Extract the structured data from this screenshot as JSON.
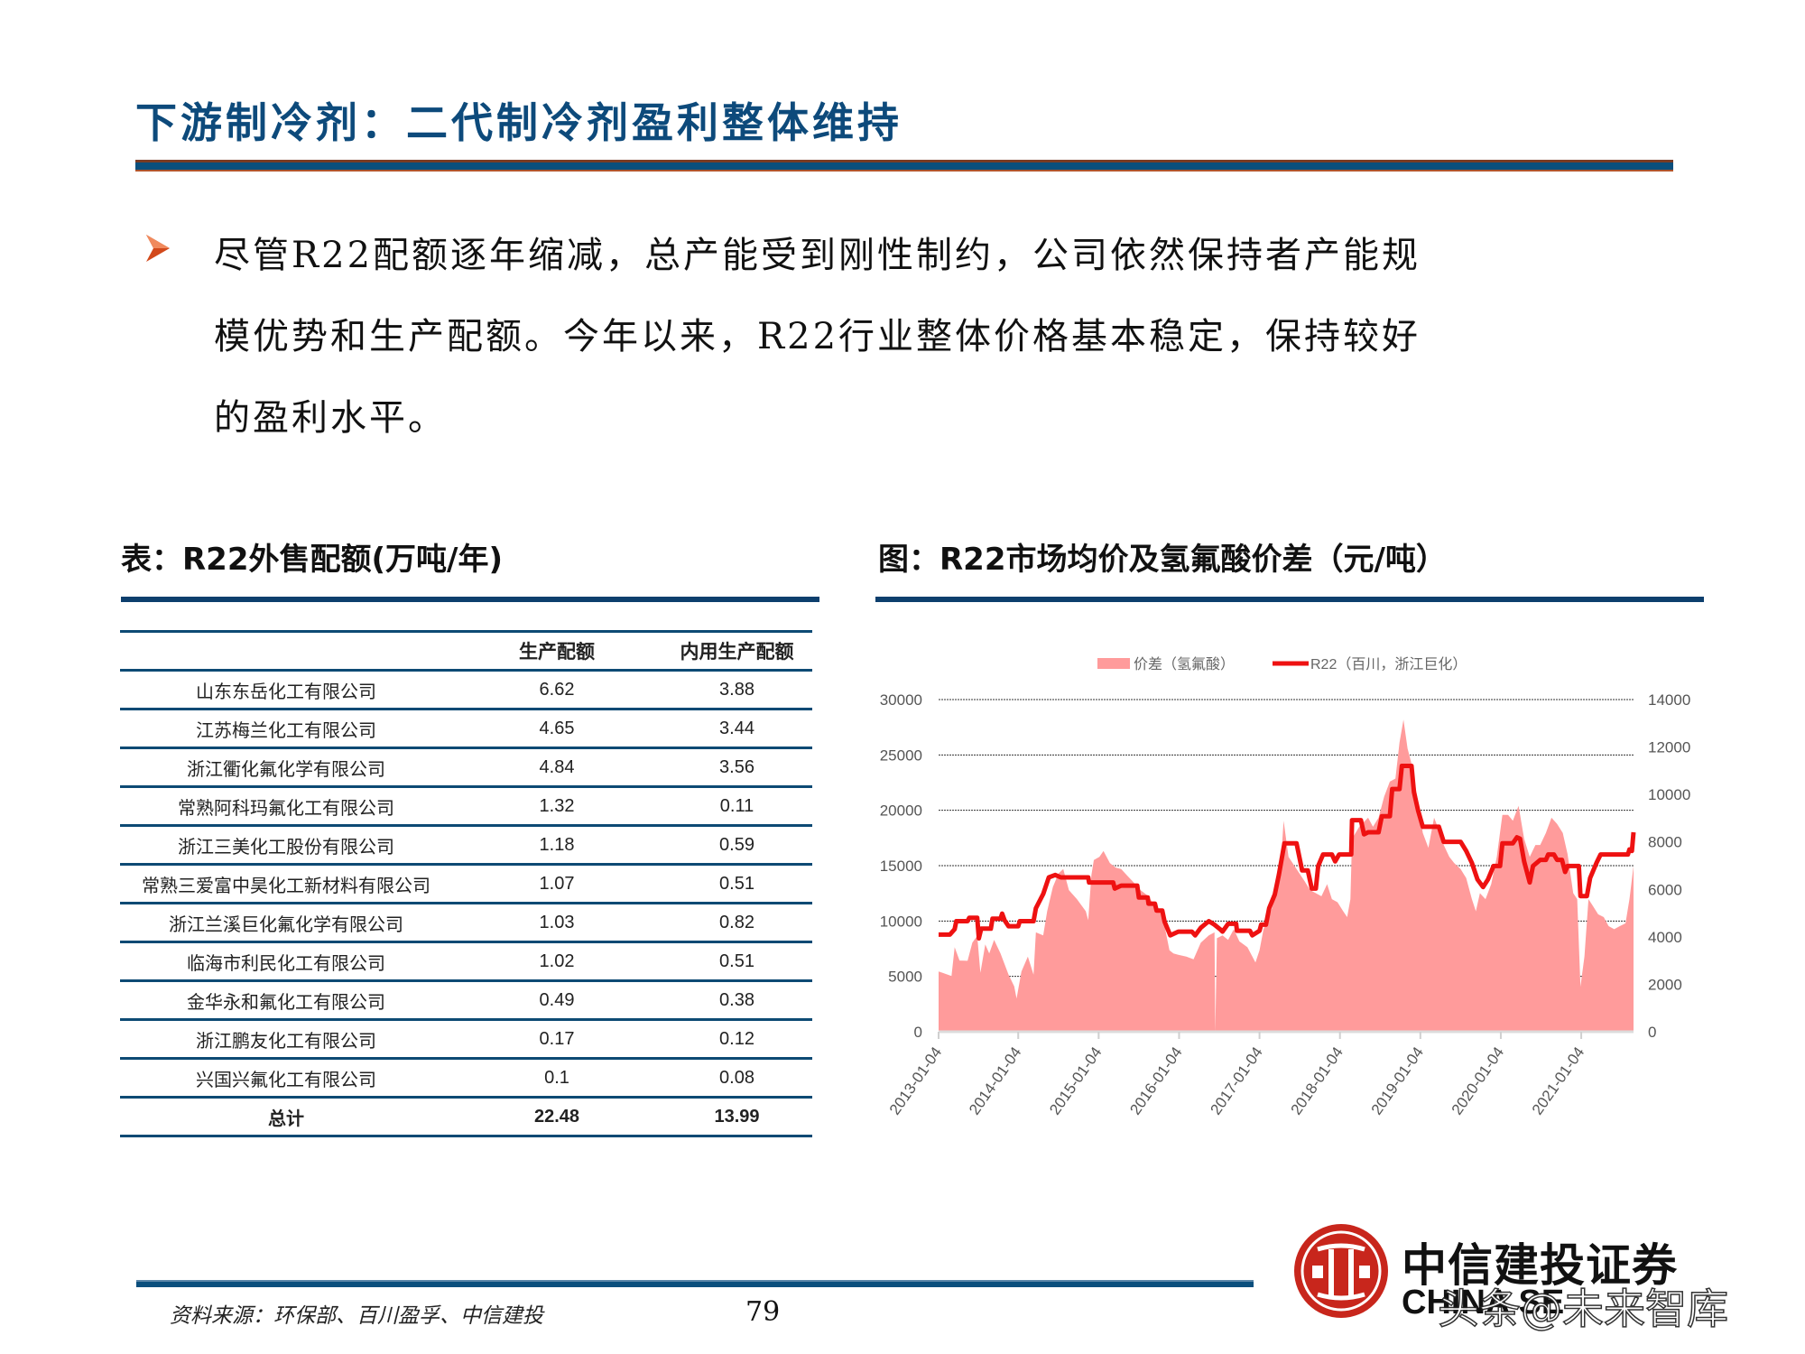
{
  "slide": {
    "title": "下游制冷剂：二代制冷剂盈利整体维持",
    "paragraph_lines": [
      "尽管R22配额逐年缩减，总产能受到刚性制约，公司依然保持者产能规",
      "模优势和生产配额。今年以来，R22行业整体价格基本稳定，保持较好",
      "的盈利水平。"
    ],
    "bullet_icon": "arrow-bullet-icon",
    "accent_colors": {
      "title_blue": "#0d4a7b",
      "rule_brown": "#7a3c25",
      "bullet_orange": "#d2491b",
      "logo_red": "#c8261c"
    }
  },
  "table": {
    "heading": "表：R22外售配额(万吨/年)",
    "columns": [
      "",
      "生产配额",
      "内用生产配额"
    ],
    "rows": [
      {
        "company": "山东东岳化工有限公司",
        "production_quota": "6.62",
        "internal_quota": "3.88"
      },
      {
        "company": "江苏梅兰化工有限公司",
        "production_quota": "4.65",
        "internal_quota": "3.44"
      },
      {
        "company": "浙江衢化氟化学有限公司",
        "production_quota": "4.84",
        "internal_quota": "3.56"
      },
      {
        "company": "常熟阿科玛氟化工有限公司",
        "production_quota": "1.32",
        "internal_quota": "0.11"
      },
      {
        "company": "浙江三美化工股份有限公司",
        "production_quota": "1.18",
        "internal_quota": "0.59"
      },
      {
        "company": "常熟三爱富中昊化工新材料有限公司",
        "production_quota": "1.07",
        "internal_quota": "0.51"
      },
      {
        "company": "浙江兰溪巨化氟化学有限公司",
        "production_quota": "1.03",
        "internal_quota": "0.82"
      },
      {
        "company": "临海市利民化工有限公司",
        "production_quota": "1.02",
        "internal_quota": "0.51"
      },
      {
        "company": "金华永和氟化工有限公司",
        "production_quota": "0.49",
        "internal_quota": "0.38"
      },
      {
        "company": "浙江鹏友化工有限公司",
        "production_quota": "0.17",
        "internal_quota": "0.12"
      },
      {
        "company": "兴国兴氟化工有限公司",
        "production_quota": "0.1",
        "internal_quota": "0.08"
      }
    ],
    "total": {
      "company": "总计",
      "production_quota": "22.48",
      "internal_quota": "13.99"
    }
  },
  "chart_heading": "图：R22市场均价及氢氟酸价差（元/吨）",
  "chart_data": {
    "type": "area+line",
    "title": "R22市场均价及氢氟酸价差（元/吨）",
    "x_unit": "years since 2013-01-04",
    "x_ticks": [
      "2013-01-04",
      "2014-01-04",
      "2015-01-04",
      "2016-01-04",
      "2017-01-04",
      "2018-01-04",
      "2019-01-04",
      "2020-01-04",
      "2021-01-04"
    ],
    "x_tick_positions": [
      0,
      0.99,
      1.99,
      2.99,
      3.99,
      4.99,
      5.99,
      6.99,
      7.99
    ],
    "x_range": [
      0,
      8.64
    ],
    "y_left": {
      "ticks": [
        "0",
        "5000",
        "10000",
        "15000",
        "20000",
        "25000",
        "30000"
      ],
      "range": [
        0,
        30000
      ]
    },
    "y_right": {
      "ticks": [
        "0",
        "2000",
        "4000",
        "6000",
        "8000",
        "10000",
        "12000",
        "14000"
      ],
      "range": [
        0,
        14000
      ]
    },
    "grid": "horizontal dotted",
    "legend_position": "top",
    "series": [
      {
        "name": "价差（氢氟酸）",
        "kind": "area",
        "axis": "right",
        "color": "#ff9b9b",
        "points": [
          [
            0,
            2540
          ],
          [
            0.05,
            2480
          ],
          [
            0.16,
            2350
          ],
          [
            0.2,
            3560
          ],
          [
            0.26,
            3000
          ],
          [
            0.36,
            2990
          ],
          [
            0.42,
            3760
          ],
          [
            0.48,
            4040
          ],
          [
            0.52,
            2480
          ],
          [
            0.58,
            3680
          ],
          [
            0.63,
            3300
          ],
          [
            0.69,
            3870
          ],
          [
            0.77,
            3300
          ],
          [
            0.87,
            2410
          ],
          [
            0.94,
            1910
          ],
          [
            0.97,
            1400
          ],
          [
            1.03,
            2540
          ],
          [
            1.11,
            3170
          ],
          [
            1.18,
            2410
          ],
          [
            1.21,
            4190
          ],
          [
            1.3,
            4060
          ],
          [
            1.35,
            5080
          ],
          [
            1.42,
            6100
          ],
          [
            1.49,
            6670
          ],
          [
            1.55,
            6860
          ],
          [
            1.62,
            5970
          ],
          [
            1.72,
            5590
          ],
          [
            1.83,
            5080
          ],
          [
            1.86,
            4700
          ],
          [
            1.9,
            6600
          ],
          [
            1.93,
            7240
          ],
          [
            2.0,
            7370
          ],
          [
            2.05,
            7620
          ],
          [
            2.13,
            7110
          ],
          [
            2.2,
            6920
          ],
          [
            2.27,
            6860
          ],
          [
            2.34,
            6600
          ],
          [
            2.41,
            6350
          ],
          [
            2.51,
            5970
          ],
          [
            2.61,
            5710
          ],
          [
            2.68,
            5330
          ],
          [
            2.75,
            5080
          ],
          [
            2.81,
            4450
          ],
          [
            2.87,
            3430
          ],
          [
            2.92,
            3300
          ],
          [
            2.98,
            3240
          ],
          [
            3.08,
            3170
          ],
          [
            3.17,
            3050
          ],
          [
            3.26,
            3750
          ],
          [
            3.36,
            4060
          ],
          [
            3.43,
            4190
          ],
          [
            3.44,
            0
          ],
          [
            3.46,
            3940
          ],
          [
            3.53,
            4060
          ],
          [
            3.6,
            3870
          ],
          [
            3.67,
            4320
          ],
          [
            3.74,
            3810
          ],
          [
            3.84,
            3560
          ],
          [
            3.94,
            2920
          ],
          [
            3.99,
            3430
          ],
          [
            4.04,
            4320
          ],
          [
            4.11,
            4830
          ],
          [
            4.18,
            5590
          ],
          [
            4.25,
            6860
          ],
          [
            4.29,
            8890
          ],
          [
            4.35,
            7370
          ],
          [
            4.45,
            6860
          ],
          [
            4.55,
            6350
          ],
          [
            4.62,
            5970
          ],
          [
            4.69,
            5840
          ],
          [
            4.76,
            5710
          ],
          [
            4.83,
            6220
          ],
          [
            4.89,
            5590
          ],
          [
            4.96,
            5460
          ],
          [
            5.03,
            5080
          ],
          [
            5.08,
            4830
          ],
          [
            5.12,
            5590
          ],
          [
            5.14,
            8130
          ],
          [
            5.23,
            8640
          ],
          [
            5.34,
            9020
          ],
          [
            5.4,
            8640
          ],
          [
            5.47,
            9020
          ],
          [
            5.54,
            9910
          ],
          [
            5.61,
            10540
          ],
          [
            5.68,
            10670
          ],
          [
            5.73,
            12190
          ],
          [
            5.78,
            13150
          ],
          [
            5.83,
            11940
          ],
          [
            5.88,
            11300
          ],
          [
            5.95,
            9910
          ],
          [
            6.02,
            8380
          ],
          [
            6.09,
            7750
          ],
          [
            6.16,
            9020
          ],
          [
            6.22,
            8510
          ],
          [
            6.28,
            7870
          ],
          [
            6.35,
            7370
          ],
          [
            6.41,
            7110
          ],
          [
            6.49,
            6860
          ],
          [
            6.56,
            6480
          ],
          [
            6.63,
            5590
          ],
          [
            6.68,
            5080
          ],
          [
            6.73,
            5840
          ],
          [
            6.8,
            5590
          ],
          [
            6.87,
            6220
          ],
          [
            6.94,
            7370
          ],
          [
            7.01,
            9140
          ],
          [
            7.08,
            9140
          ],
          [
            7.14,
            8890
          ],
          [
            7.21,
            9520
          ],
          [
            7.28,
            8130
          ],
          [
            7.35,
            7370
          ],
          [
            7.42,
            7870
          ],
          [
            7.48,
            7870
          ],
          [
            7.55,
            8380
          ],
          [
            7.62,
            9020
          ],
          [
            7.69,
            8760
          ],
          [
            7.76,
            8380
          ],
          [
            7.82,
            7490
          ],
          [
            7.89,
            5840
          ],
          [
            7.94,
            5590
          ],
          [
            7.98,
            1900
          ],
          [
            8.03,
            3170
          ],
          [
            8.08,
            5590
          ],
          [
            8.13,
            5330
          ],
          [
            8.2,
            4950
          ],
          [
            8.27,
            4830
          ],
          [
            8.33,
            4450
          ],
          [
            8.4,
            4320
          ],
          [
            8.47,
            4450
          ],
          [
            8.54,
            4570
          ],
          [
            8.59,
            5590
          ],
          [
            8.64,
            6990
          ]
        ]
      },
      {
        "name": "R22（百川，浙江巨化）",
        "kind": "line",
        "axis": "left",
        "color": "#ee1111",
        "points": [
          [
            0,
            8770
          ],
          [
            0.14,
            8770
          ],
          [
            0.2,
            9260
          ],
          [
            0.22,
            9990
          ],
          [
            0.36,
            9990
          ],
          [
            0.38,
            10290
          ],
          [
            0.48,
            10290
          ],
          [
            0.5,
            8440
          ],
          [
            0.53,
            9310
          ],
          [
            0.65,
            9310
          ],
          [
            0.67,
            10210
          ],
          [
            0.77,
            10210
          ],
          [
            0.79,
            10670
          ],
          [
            0.82,
            10070
          ],
          [
            0.87,
            9530
          ],
          [
            0.99,
            9530
          ],
          [
            1.01,
            9990
          ],
          [
            1.18,
            9990
          ],
          [
            1.21,
            11160
          ],
          [
            1.3,
            12440
          ],
          [
            1.37,
            13940
          ],
          [
            1.45,
            14160
          ],
          [
            1.52,
            13940
          ],
          [
            1.86,
            13940
          ],
          [
            1.87,
            13480
          ],
          [
            2.17,
            13480
          ],
          [
            2.19,
            12930
          ],
          [
            2.27,
            13200
          ],
          [
            2.47,
            13200
          ],
          [
            2.49,
            12120
          ],
          [
            2.6,
            12120
          ],
          [
            2.61,
            11570
          ],
          [
            2.69,
            11570
          ],
          [
            2.71,
            10950
          ],
          [
            2.78,
            10950
          ],
          [
            2.81,
            9940
          ],
          [
            2.88,
            8710
          ],
          [
            2.98,
            9040
          ],
          [
            3.15,
            9040
          ],
          [
            3.19,
            8710
          ],
          [
            3.26,
            9390
          ],
          [
            3.36,
            9990
          ],
          [
            3.43,
            9670
          ],
          [
            3.5,
            9260
          ],
          [
            3.53,
            9040
          ],
          [
            3.6,
            9750
          ],
          [
            3.7,
            9750
          ],
          [
            3.71,
            9120
          ],
          [
            3.87,
            9120
          ],
          [
            3.9,
            8710
          ],
          [
            3.99,
            9120
          ],
          [
            4.01,
            9670
          ],
          [
            4.07,
            9670
          ],
          [
            4.11,
            11160
          ],
          [
            4.18,
            12390
          ],
          [
            4.23,
            14160
          ],
          [
            4.3,
            17020
          ],
          [
            4.45,
            17020
          ],
          [
            4.52,
            14570
          ],
          [
            4.59,
            14570
          ],
          [
            4.64,
            12930
          ],
          [
            4.69,
            12930
          ],
          [
            4.72,
            14970
          ],
          [
            4.78,
            16010
          ],
          [
            4.89,
            16010
          ],
          [
            4.93,
            15380
          ],
          [
            4.98,
            16010
          ],
          [
            5.13,
            16010
          ],
          [
            5.14,
            19110
          ],
          [
            5.25,
            19110
          ],
          [
            5.29,
            17830
          ],
          [
            5.34,
            18020
          ],
          [
            5.47,
            18020
          ],
          [
            5.51,
            19470
          ],
          [
            5.61,
            19470
          ],
          [
            5.64,
            21920
          ],
          [
            5.73,
            21920
          ],
          [
            5.76,
            24010
          ],
          [
            5.88,
            24010
          ],
          [
            5.91,
            21650
          ],
          [
            5.96,
            20010
          ],
          [
            6.02,
            18510
          ],
          [
            6.22,
            18510
          ],
          [
            6.28,
            17150
          ],
          [
            6.49,
            17150
          ],
          [
            6.56,
            16330
          ],
          [
            6.63,
            15250
          ],
          [
            6.7,
            13750
          ],
          [
            6.77,
            13070
          ],
          [
            6.83,
            13750
          ],
          [
            6.9,
            14970
          ],
          [
            6.98,
            14970
          ],
          [
            7.01,
            17020
          ],
          [
            7.14,
            17020
          ],
          [
            7.19,
            17560
          ],
          [
            7.23,
            17430
          ],
          [
            7.28,
            15380
          ],
          [
            7.35,
            13480
          ],
          [
            7.39,
            14970
          ],
          [
            7.48,
            15520
          ],
          [
            7.55,
            15520
          ],
          [
            7.58,
            16010
          ],
          [
            7.65,
            16010
          ],
          [
            7.69,
            15520
          ],
          [
            7.75,
            15520
          ],
          [
            7.79,
            14430
          ],
          [
            7.82,
            14970
          ],
          [
            7.96,
            14970
          ],
          [
            7.98,
            12250
          ],
          [
            8.06,
            12250
          ],
          [
            8.1,
            13880
          ],
          [
            8.18,
            15250
          ],
          [
            8.23,
            16010
          ],
          [
            8.57,
            16010
          ],
          [
            8.59,
            16470
          ],
          [
            8.62,
            16330
          ],
          [
            8.64,
            18020
          ]
        ]
      }
    ]
  },
  "footer": {
    "source": "资料来源：环保部、百川盈孚、中信建投",
    "page_number": "79",
    "logo_cn": "中信建投证券",
    "logo_en": "CHINA SE",
    "watermark": "头条@未来智库"
  }
}
